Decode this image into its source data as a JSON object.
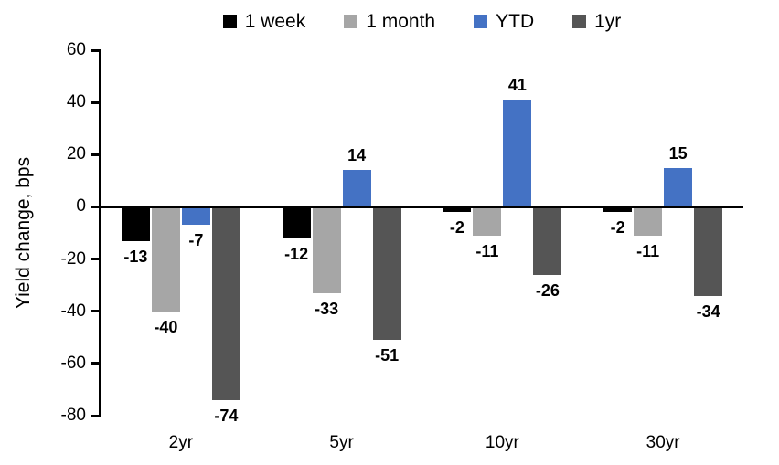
{
  "chart_data": {
    "type": "bar",
    "title": "",
    "ylabel": "Yield change, bps",
    "xlabel": "",
    "categories": [
      "2yr",
      "5yr",
      "10yr",
      "30yr"
    ],
    "series": [
      {
        "name": "1 week",
        "color": "#000000",
        "values": [
          -13,
          -12,
          -2,
          -2
        ]
      },
      {
        "name": "1 month",
        "color": "#A6A6A6",
        "values": [
          -40,
          -33,
          -11,
          -11
        ]
      },
      {
        "name": "YTD",
        "color": "#4472C4",
        "values": [
          -7,
          14,
          41,
          15
        ]
      },
      {
        "name": "1yr",
        "color": "#555555",
        "values": [
          -74,
          -51,
          -26,
          -34
        ]
      }
    ],
    "ylim": [
      -80,
      60
    ],
    "yticks": [
      60,
      40,
      20,
      0,
      -20,
      -40,
      -60,
      -80
    ],
    "grid": "off",
    "legend_position": "top",
    "data_labels": "bold, outside end"
  }
}
